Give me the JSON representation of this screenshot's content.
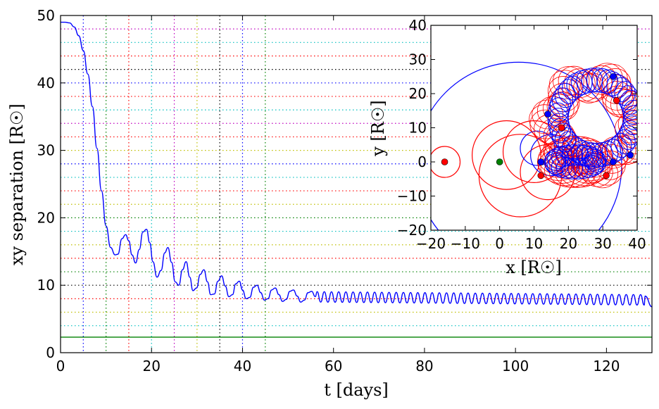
{
  "chart_data": [
    {
      "type": "line",
      "xlabel": "t  [days]",
      "ylabel": "xy  separation  [R☉]",
      "xlim": [
        0,
        130
      ],
      "ylim": [
        0,
        50
      ],
      "x_ticks": [
        "0",
        "20",
        "40",
        "60",
        "80",
        "100",
        "120"
      ],
      "y_ticks": [
        "0",
        "10",
        "20",
        "30",
        "40",
        "50"
      ],
      "grid": "dotted colored reference lines",
      "series": [
        {
          "color": "#0000ff",
          "x": [
            0,
            1,
            2,
            3,
            4,
            5,
            6,
            7,
            8,
            9,
            10,
            11,
            12,
            12.6,
            13.5,
            14.3,
            15.0,
            15.7,
            16.5,
            17.3,
            18.1,
            18.9,
            19.6,
            20.3,
            21.2,
            22.1,
            22.9,
            23.6,
            24.4,
            25.2,
            26.0,
            26.8,
            27.6,
            28.4,
            29.1,
            29.9,
            30.7,
            31.5,
            32.3,
            33.0,
            33.8,
            34.6,
            35.4,
            36.2,
            37.0,
            37.8,
            38.5,
            39.3,
            40.0,
            40.8,
            41.6,
            42.4,
            43.2,
            44.0,
            44.8,
            45.6,
            46.4,
            47.2,
            48.0,
            48.8,
            49.6,
            50.4,
            51.2,
            52.0,
            52.8,
            53.6,
            54.4,
            55.2,
            56.0,
            60,
            70,
            80,
            90,
            100,
            110,
            120,
            128,
            130
          ],
          "y": [
            49,
            49.0,
            48.9,
            48.3,
            47.0,
            44.8,
            41.3,
            36.5,
            30.3,
            24.0,
            18.8,
            15.6,
            14.5,
            14.6,
            16.9,
            17.5,
            16.6,
            14.5,
            13.3,
            15.3,
            17.9,
            18.3,
            16.3,
            13.5,
            11.2,
            12.2,
            14.8,
            15.6,
            13.4,
            10.5,
            10.0,
            12.3,
            13.5,
            11.2,
            9.2,
            9.6,
            11.6,
            12.3,
            10.5,
            8.6,
            8.7,
            10.6,
            11.4,
            9.9,
            8.3,
            8.6,
            10.2,
            10.6,
            9.3,
            8.0,
            8.2,
            9.7,
            10.0,
            8.9,
            7.8,
            8.0,
            9.3,
            9.6,
            8.6,
            7.6,
            7.9,
            9.1,
            9.3,
            8.4,
            7.5,
            7.8,
            8.9,
            9.1,
            8.3,
            "osc 7.4-9.0",
            "osc 7.3-8.9",
            "osc 7.2-8.8",
            "osc 7.2-8.8",
            "osc 7.2-8.7",
            "osc 7.1-8.7",
            "osc 7.0-8.6",
            7.6,
            6.8
          ]
        }
      ],
      "reference_lines": {
        "horizontal_green": 2.3,
        "vertical_x": [
          5,
          10,
          15,
          20,
          25,
          30,
          35,
          40,
          45
        ],
        "vertical_colors": [
          "#0000ff",
          "#008000",
          "#ff0000",
          "#00bfbf",
          "#bf00bf",
          "#bfbf00",
          "#000000",
          "#0000ff",
          "#008000"
        ],
        "horizontal_y": [
          4,
          6,
          8,
          10,
          12,
          14,
          16,
          18,
          20,
          22,
          24,
          26,
          28,
          30,
          32,
          34,
          36,
          38,
          40,
          42,
          44,
          46,
          48
        ],
        "horizontal_colors": [
          "#00bfbf",
          "#bfbf00",
          "#ff0000",
          "#000000",
          "#008000",
          "#ff0000",
          "#bfbf00",
          "#00bfbf",
          "#008000",
          "#bfbf00",
          "#ff0000",
          "#00bfbf",
          "#0000ff",
          "#bfbf00",
          "#ff0000",
          "#bf00bf",
          "#00bfbf",
          "#ff0000",
          "#0000ff",
          "#000000",
          "#ff0000",
          "#00bfbf",
          "#bf00bf"
        ]
      }
    },
    {
      "type": "line",
      "xlabel": "x [R☉]",
      "ylabel": "y [R☉]",
      "xlim": [
        -20,
        40
      ],
      "ylim": [
        -20,
        40
      ],
      "x_ticks": [
        "−20",
        "−10",
        "0",
        "10",
        "20",
        "30",
        "40"
      ],
      "y_ticks": [
        "−20",
        "−10",
        "0",
        "10",
        "20",
        "30",
        "40"
      ],
      "series": [
        {
          "color": "#0000ff",
          "description_points": "orbit of blue star: large loop center (5,0) r≈30 spiraling into epicycles around (25,5)"
        },
        {
          "color": "#ff0000",
          "description_points": "orbit of red star: starts (-16,0), loops spiraling toward (25,10)"
        }
      ],
      "markers": [
        {
          "color": "#008000",
          "x": 0,
          "y": 0
        },
        {
          "color": "#ff0000",
          "x": -16,
          "y": 0
        },
        {
          "color": "#0000ff",
          "x": 14,
          "y": 14
        },
        {
          "color": "#0000ff",
          "x": 33,
          "y": 25
        },
        {
          "color": "#0000ff",
          "x": 12,
          "y": 0
        },
        {
          "color": "#0000ff",
          "x": 33,
          "y": 0
        },
        {
          "color": "#0000ff",
          "x": 38,
          "y": 2
        },
        {
          "color": "#ff0000",
          "x": 34,
          "y": 18
        },
        {
          "color": "#ff0000",
          "x": 12,
          "y": -4
        },
        {
          "color": "#ff0000",
          "x": 31,
          "y": -4
        },
        {
          "color": "#ff0000",
          "x": 18,
          "y": 10
        }
      ]
    }
  ]
}
